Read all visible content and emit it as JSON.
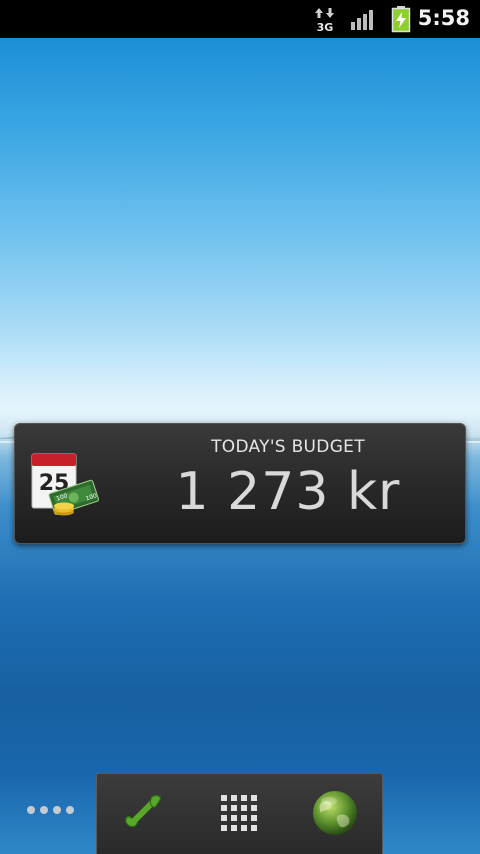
{
  "status_bar": {
    "time": "5:58",
    "network_type": "3G",
    "icons": [
      "data-arrows-icon",
      "signal-icon",
      "battery-charging-icon"
    ]
  },
  "widget": {
    "title": "TODAY'S BUDGET",
    "amount": "1 273 kr",
    "calendar_day": "25",
    "bill_value": "100",
    "icon": "calendar-money-icon"
  },
  "dock": {
    "items": [
      {
        "name": "phone",
        "icon": "phone-icon"
      },
      {
        "name": "apps",
        "icon": "app-grid-icon"
      },
      {
        "name": "browser",
        "icon": "globe-icon"
      }
    ]
  },
  "colors": {
    "status_bar": "#000000",
    "widget_bg": "#2b2b2b",
    "phone_green": "#5aa82a",
    "battery_green": "#8ccf2e"
  }
}
